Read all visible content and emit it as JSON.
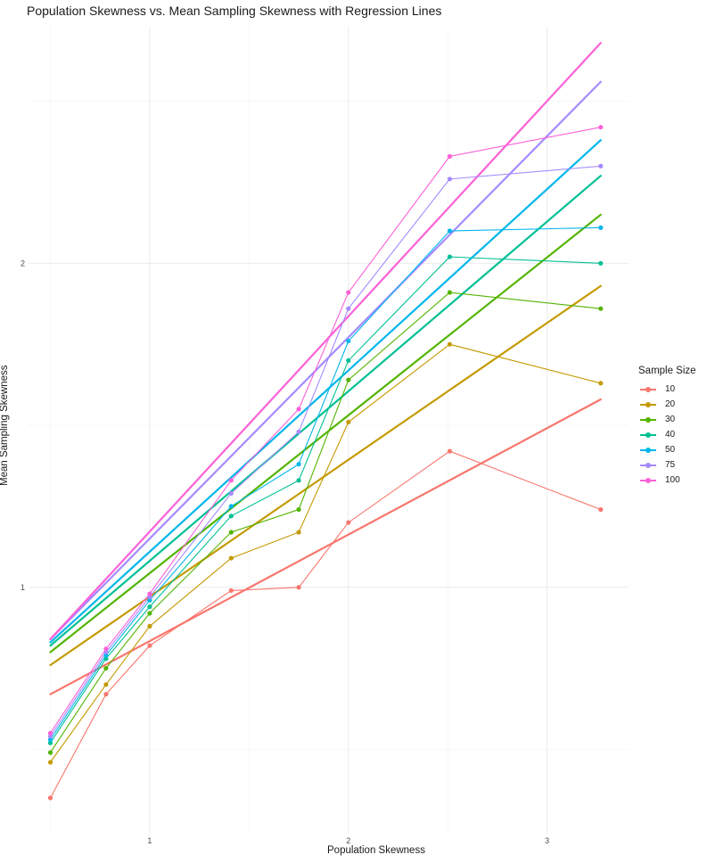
{
  "chart_data": {
    "type": "line",
    "title": "Population Skewness vs. Mean Sampling Skewness with Regression Lines",
    "xlabel": "Population Skewness",
    "ylabel": "Mean Sampling Skewness",
    "xlim": [
      0.39,
      3.41
    ],
    "ylim": [
      0.24,
      2.73
    ],
    "xticks": [
      1,
      2,
      3
    ],
    "yticks": [
      1,
      2
    ],
    "grid": true,
    "legend_title": "Sample Size",
    "legend_position": "right",
    "x": [
      0.5,
      0.78,
      1.0,
      1.41,
      1.75,
      2.0,
      2.51,
      3.27
    ],
    "series": [
      {
        "name": "10",
        "color": "#F8766D",
        "values": [
          0.35,
          0.67,
          0.82,
          0.99,
          1.0,
          1.2,
          1.42,
          1.24
        ],
        "regression": [
          0.67,
          1.58
        ]
      },
      {
        "name": "20",
        "color": "#C49A00",
        "values": [
          0.46,
          0.7,
          0.88,
          1.09,
          1.17,
          1.51,
          1.75,
          1.63
        ],
        "regression": [
          0.76,
          1.93
        ]
      },
      {
        "name": "30",
        "color": "#53B400",
        "values": [
          0.49,
          0.75,
          0.92,
          1.17,
          1.24,
          1.64,
          1.91,
          1.86
        ],
        "regression": [
          0.8,
          2.15
        ]
      },
      {
        "name": "40",
        "color": "#00C094",
        "values": [
          0.52,
          0.78,
          0.94,
          1.22,
          1.33,
          1.7,
          2.02,
          2.0
        ],
        "regression": [
          0.82,
          2.27
        ]
      },
      {
        "name": "50",
        "color": "#00B6EB",
        "values": [
          0.53,
          0.79,
          0.96,
          1.25,
          1.38,
          1.76,
          2.1,
          2.11
        ],
        "regression": [
          0.83,
          2.38
        ]
      },
      {
        "name": "75",
        "color": "#A58AFF",
        "values": [
          0.54,
          0.8,
          0.97,
          1.29,
          1.48,
          1.86,
          2.26,
          2.3
        ],
        "regression": [
          0.84,
          2.56
        ]
      },
      {
        "name": "100",
        "color": "#FB61D7",
        "values": [
          0.55,
          0.81,
          0.98,
          1.33,
          1.55,
          1.91,
          2.33,
          2.42
        ],
        "regression": [
          0.84,
          2.68
        ]
      }
    ]
  }
}
